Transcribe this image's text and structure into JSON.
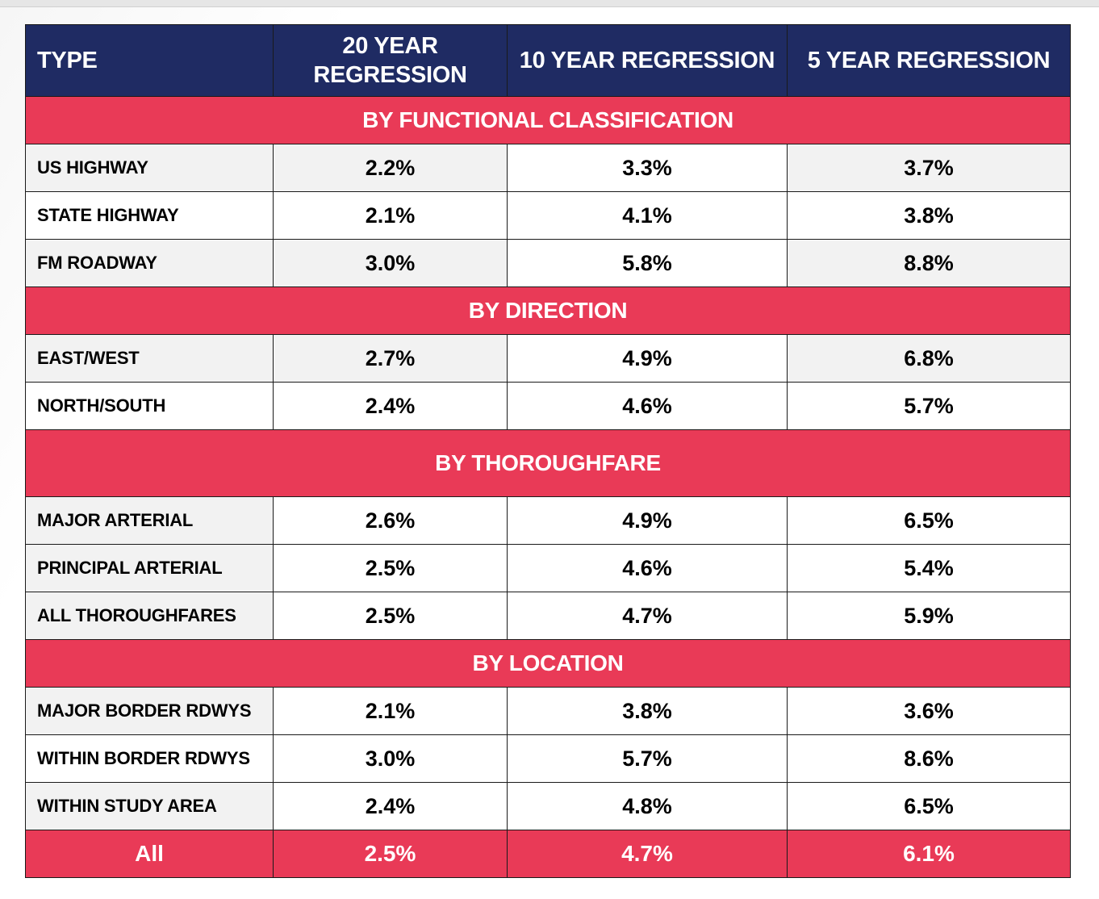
{
  "table": {
    "headers": [
      "TYPE",
      "20 YEAR REGRESSION",
      "10 YEAR REGRESSION",
      "5 YEAR REGRESSION"
    ],
    "sections": [
      {
        "title": "BY FUNCTIONAL CLASSIFICATION",
        "rows": [
          {
            "type": "US HIGHWAY",
            "y20": "2.2%",
            "y10": "3.3%",
            "y5": "3.7%"
          },
          {
            "type": "STATE HIGHWAY",
            "y20": "2.1%",
            "y10": "4.1%",
            "y5": "3.8%"
          },
          {
            "type": "FM ROADWAY",
            "y20": "3.0%",
            "y10": "5.8%",
            "y5": "8.8%"
          }
        ]
      },
      {
        "title": "BY DIRECTION",
        "rows": [
          {
            "type": "EAST/WEST",
            "y20": "2.7%",
            "y10": "4.9%",
            "y5": "6.8%"
          },
          {
            "type": "NORTH/SOUTH",
            "y20": "2.4%",
            "y10": "4.6%",
            "y5": "5.7%"
          }
        ]
      },
      {
        "title": "BY THOROUGHFARE",
        "rows": [
          {
            "type": "MAJOR ARTERIAL",
            "y20": "2.6%",
            "y10": "4.9%",
            "y5": "6.5%"
          },
          {
            "type": "PRINCIPAL ARTERIAL",
            "y20": "2.5%",
            "y10": "4.6%",
            "y5": "5.4%"
          },
          {
            "type": "ALL THOROUGHFARES",
            "y20": "2.5%",
            "y10": "4.7%",
            "y5": "5.9%"
          }
        ]
      },
      {
        "title": "BY LOCATION",
        "rows": [
          {
            "type": "MAJOR BORDER RDWYS",
            "y20": "2.1%",
            "y10": "3.8%",
            "y5": "3.6%"
          },
          {
            "type": "WITHIN BORDER RDWYS",
            "y20": "3.0%",
            "y10": "5.7%",
            "y5": "8.6%"
          },
          {
            "type": "WITHIN STUDY AREA",
            "y20": "2.4%",
            "y10": "4.8%",
            "y5": "6.5%"
          }
        ]
      }
    ],
    "total": {
      "type": "All",
      "y20": "2.5%",
      "y10": "4.7%",
      "y5": "6.1%"
    }
  },
  "colors": {
    "header_bg": "#1f2b63",
    "section_bg": "#e93a57",
    "row_shade": "#f2f2f2"
  }
}
